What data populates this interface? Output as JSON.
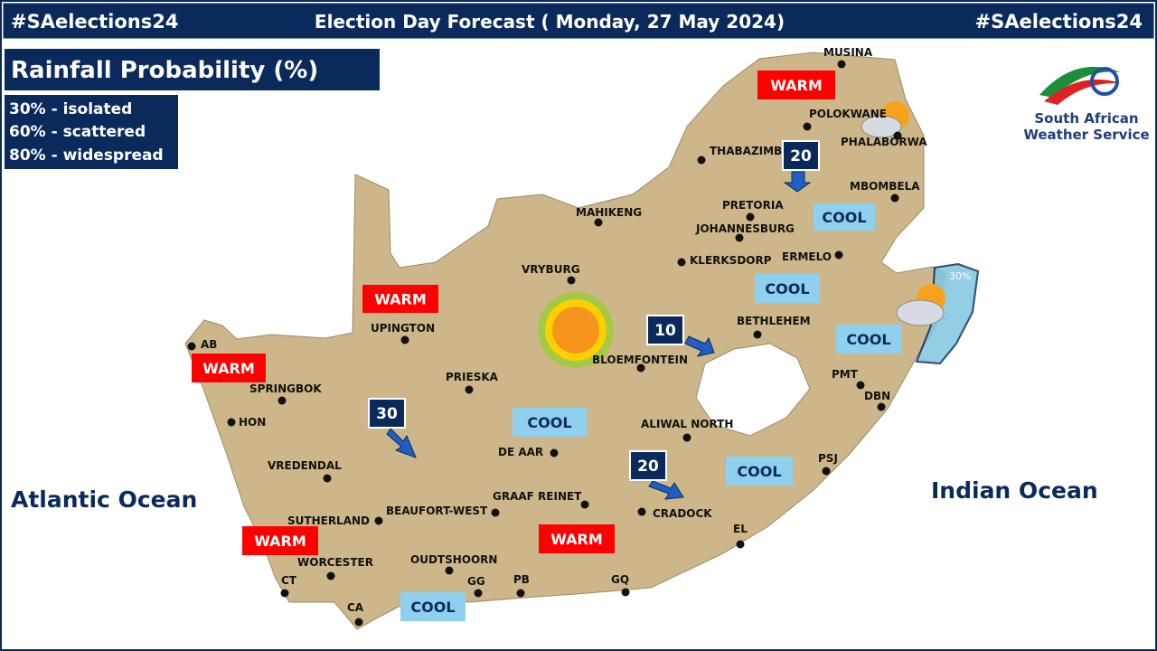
{
  "header": {
    "left": "#SAelections24",
    "title": "Election Day Forecast ( Monday, 27 May 2024)",
    "right": "#SAelections24"
  },
  "legend": {
    "title": "Rainfall Probability (%)",
    "items": [
      "30% - isolated",
      "60% - scattered",
      "80% - widespread"
    ]
  },
  "logo": {
    "line1": "South African",
    "line2": "Weather Service"
  },
  "oceans": [
    "Atlantic Ocean",
    "Indian Ocean"
  ],
  "cities": [
    "MUSINA",
    "POLOKWANE",
    "PHALABORWA",
    "THABAZIMBI",
    "PRETORIA",
    "JOHANNESBURG",
    "MBOMBELA",
    "ERMELO",
    "KLERKSDORP",
    "MAHIKENG",
    "VRYBURG",
    "BETHLEHEM",
    "BLOEMFONTEIN",
    "UPINGTON",
    "PRIESKA",
    "AB",
    "SPRINGBOK",
    "HON",
    "PMT",
    "DBN",
    "ALIWAL NORTH",
    "DE AAR",
    "PSJ",
    "VREDENDAL",
    "GRAAF REINET",
    "CRADOCK",
    "BEAUFORT-WEST",
    "SUTHERLAND",
    "EL",
    "WORCESTER",
    "OUDTSHOORN",
    "CT",
    "GG",
    "PB",
    "GQ",
    "CA"
  ],
  "temperature_tags": [
    "WARM",
    "WARM",
    "WARM",
    "WARM",
    "WARM",
    "COOL",
    "COOL",
    "COOL",
    "COOL",
    "COOL",
    "COOL"
  ],
  "rain_markers": [
    20,
    10,
    30,
    20
  ],
  "shower_label": "30%"
}
